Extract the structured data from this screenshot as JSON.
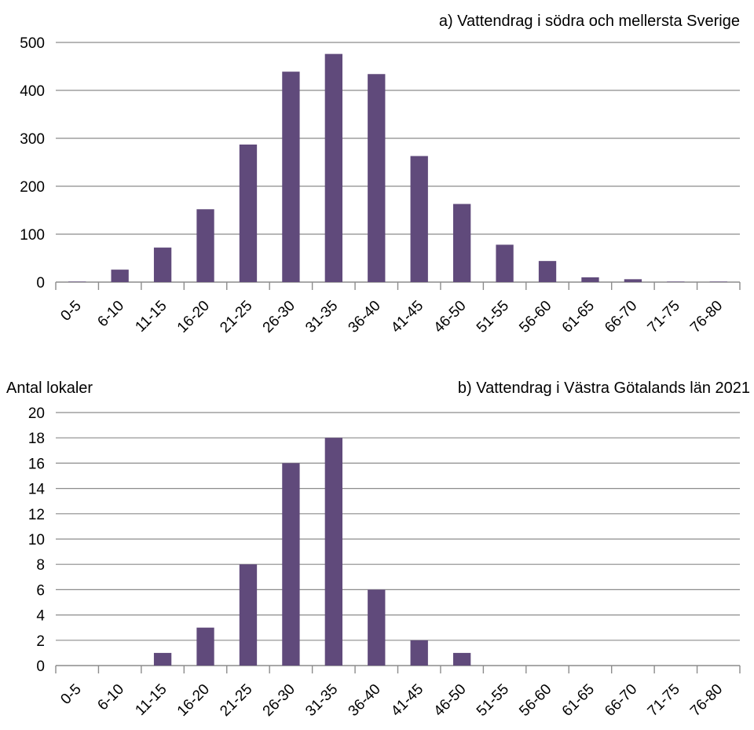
{
  "colors": {
    "bar": "#604a7b"
  },
  "chart_data": [
    {
      "type": "bar",
      "title": "a) Vattendrag i södra och mellersta Sverige",
      "ylabel": "",
      "xlabel": "",
      "categories": [
        "0-5",
        "6-10",
        "11-15",
        "16-20",
        "21-25",
        "26-30",
        "31-35",
        "36-40",
        "41-45",
        "46-50",
        "51-55",
        "56-60",
        "61-65",
        "66-70",
        "71-75",
        "76-80"
      ],
      "values": [
        1,
        26,
        72,
        152,
        287,
        439,
        476,
        434,
        263,
        163,
        78,
        44,
        10,
        6,
        1,
        1
      ],
      "ylim": [
        0,
        500
      ],
      "yticks": [
        "0",
        "100",
        "200",
        "300",
        "400",
        "500"
      ],
      "grid": true
    },
    {
      "type": "bar",
      "title": "b) Vattendrag i Västra Götalands län 2021",
      "ylabel": "Antal lokaler",
      "xlabel": "",
      "categories": [
        "0-5",
        "6-10",
        "11-15",
        "16-20",
        "21-25",
        "26-30",
        "31-35",
        "36-40",
        "41-45",
        "46-50",
        "51-55",
        "56-60",
        "61-65",
        "66-70",
        "71-75",
        "76-80"
      ],
      "values": [
        0,
        0,
        1,
        3,
        8,
        16,
        18,
        6,
        2,
        1,
        0,
        0,
        0,
        0,
        0,
        0
      ],
      "ylim": [
        0,
        20
      ],
      "yticks": [
        "0",
        "2",
        "4",
        "6",
        "8",
        "10",
        "12",
        "14",
        "16",
        "18",
        "20"
      ],
      "grid": true
    }
  ]
}
